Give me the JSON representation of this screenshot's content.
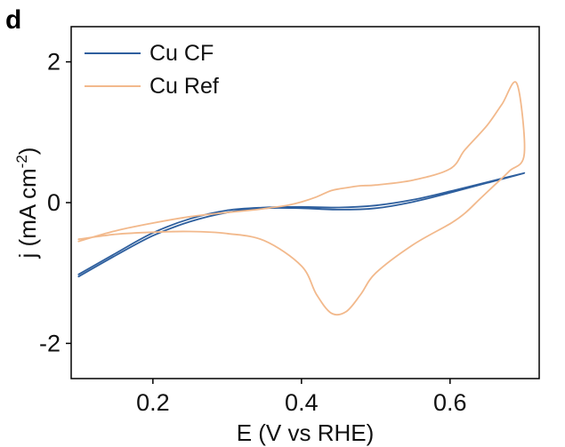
{
  "panel_label": "d",
  "colors": {
    "cu_cf": "#2e5f9e",
    "cu_ref": "#f2b98c",
    "axis": "#000000"
  },
  "chart_data": {
    "type": "line",
    "title": "",
    "xlabel": "E (V vs RHE)",
    "ylabel_main": "j (mA cm",
    "ylabel_sup": "-2",
    "ylabel_end": ")",
    "xlim": [
      0.09,
      0.72
    ],
    "ylim": [
      -2.5,
      2.5
    ],
    "xticks": [
      0.2,
      0.4,
      0.6
    ],
    "xtick_labels": [
      "0.2",
      "0.4",
      "0.6"
    ],
    "yticks": [
      -2,
      0,
      2
    ],
    "ytick_labels": [
      "-2",
      "0",
      "2"
    ],
    "legend_position": "top-left",
    "series": [
      {
        "name": "Cu CF",
        "color": "#2e5f9e",
        "x": [
          0.1,
          0.15,
          0.2,
          0.25,
          0.3,
          0.35,
          0.4,
          0.45,
          0.5,
          0.55,
          0.6,
          0.65,
          0.7,
          0.65,
          0.6,
          0.55,
          0.5,
          0.45,
          0.4,
          0.35,
          0.3,
          0.25,
          0.2,
          0.15,
          0.1
        ],
        "y": [
          -1.05,
          -0.75,
          -0.47,
          -0.27,
          -0.14,
          -0.08,
          -0.08,
          -0.1,
          -0.08,
          0.01,
          0.14,
          0.28,
          0.42,
          0.29,
          0.16,
          0.04,
          -0.04,
          -0.07,
          -0.06,
          -0.07,
          -0.11,
          -0.23,
          -0.43,
          -0.72,
          -1.02
        ]
      },
      {
        "name": "Cu Ref",
        "color": "#f2b98c",
        "x": [
          0.1,
          0.15,
          0.2,
          0.25,
          0.3,
          0.35,
          0.4,
          0.42,
          0.44,
          0.46,
          0.48,
          0.5,
          0.55,
          0.6,
          0.62,
          0.64,
          0.66,
          0.68,
          0.7,
          0.69,
          0.67,
          0.65,
          0.62,
          0.6,
          0.55,
          0.5,
          0.48,
          0.46,
          0.44,
          0.42,
          0.4,
          0.38,
          0.36,
          0.34,
          0.3,
          0.25,
          0.2,
          0.15,
          0.1
        ],
        "y": [
          -0.52,
          -0.45,
          -0.42,
          -0.41,
          -0.44,
          -0.54,
          -0.9,
          -1.3,
          -1.57,
          -1.55,
          -1.3,
          -1.0,
          -0.6,
          -0.3,
          -0.15,
          0.05,
          0.25,
          0.45,
          0.7,
          1.69,
          1.4,
          1.1,
          0.75,
          0.48,
          0.32,
          0.25,
          0.24,
          0.21,
          0.17,
          0.08,
          0.01,
          -0.04,
          -0.07,
          -0.1,
          -0.14,
          -0.2,
          -0.29,
          -0.4,
          -0.55
        ]
      }
    ]
  }
}
